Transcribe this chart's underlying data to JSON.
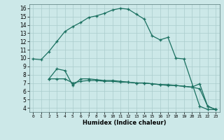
{
  "xlabel": "Humidex (Indice chaleur)",
  "bg_color": "#cce8e8",
  "grid_color": "#aacccc",
  "line_color": "#1a7060",
  "xlim": [
    -0.5,
    23.5
  ],
  "ylim": [
    3.5,
    16.5
  ],
  "yticks": [
    4,
    5,
    6,
    7,
    8,
    9,
    10,
    11,
    12,
    13,
    14,
    15,
    16
  ],
  "xticks": [
    0,
    1,
    2,
    3,
    4,
    5,
    6,
    7,
    8,
    9,
    10,
    11,
    12,
    13,
    14,
    15,
    16,
    17,
    18,
    19,
    20,
    21,
    22,
    23
  ],
  "main_x": [
    0,
    1,
    2,
    3,
    4,
    5,
    6,
    7,
    8,
    9,
    10,
    11,
    12,
    13,
    14,
    15,
    16,
    17,
    18,
    19,
    21,
    22,
    23
  ],
  "main_y": [
    9.9,
    9.8,
    10.8,
    12.0,
    13.2,
    13.8,
    14.3,
    14.9,
    15.1,
    15.4,
    15.8,
    16.0,
    15.9,
    15.3,
    14.7,
    12.7,
    12.2,
    12.5,
    10.0,
    9.9,
    4.2,
    3.8,
    3.8
  ],
  "flat1_x": [
    2,
    3,
    4,
    5,
    6,
    7,
    8,
    9,
    10,
    11,
    12,
    13,
    14,
    15,
    16,
    17,
    18,
    19,
    20,
    21,
    22,
    23
  ],
  "flat1_y": [
    7.5,
    7.5,
    7.5,
    7.0,
    7.2,
    7.3,
    7.3,
    7.2,
    7.2,
    7.1,
    7.1,
    7.0,
    7.0,
    6.9,
    6.8,
    6.8,
    6.7,
    6.6,
    6.5,
    6.9,
    4.2,
    3.8
  ],
  "flat2_x": [
    2,
    3,
    4,
    5,
    6,
    7,
    8,
    9,
    10,
    11,
    12,
    13,
    14,
    15,
    16,
    17,
    18,
    19,
    20,
    21,
    22,
    23
  ],
  "flat2_y": [
    7.5,
    8.7,
    8.5,
    6.7,
    7.5,
    7.5,
    7.4,
    7.3,
    7.3,
    7.2,
    7.1,
    7.0,
    7.0,
    6.9,
    6.8,
    6.7,
    6.7,
    6.6,
    6.5,
    6.3,
    4.2,
    3.8
  ]
}
